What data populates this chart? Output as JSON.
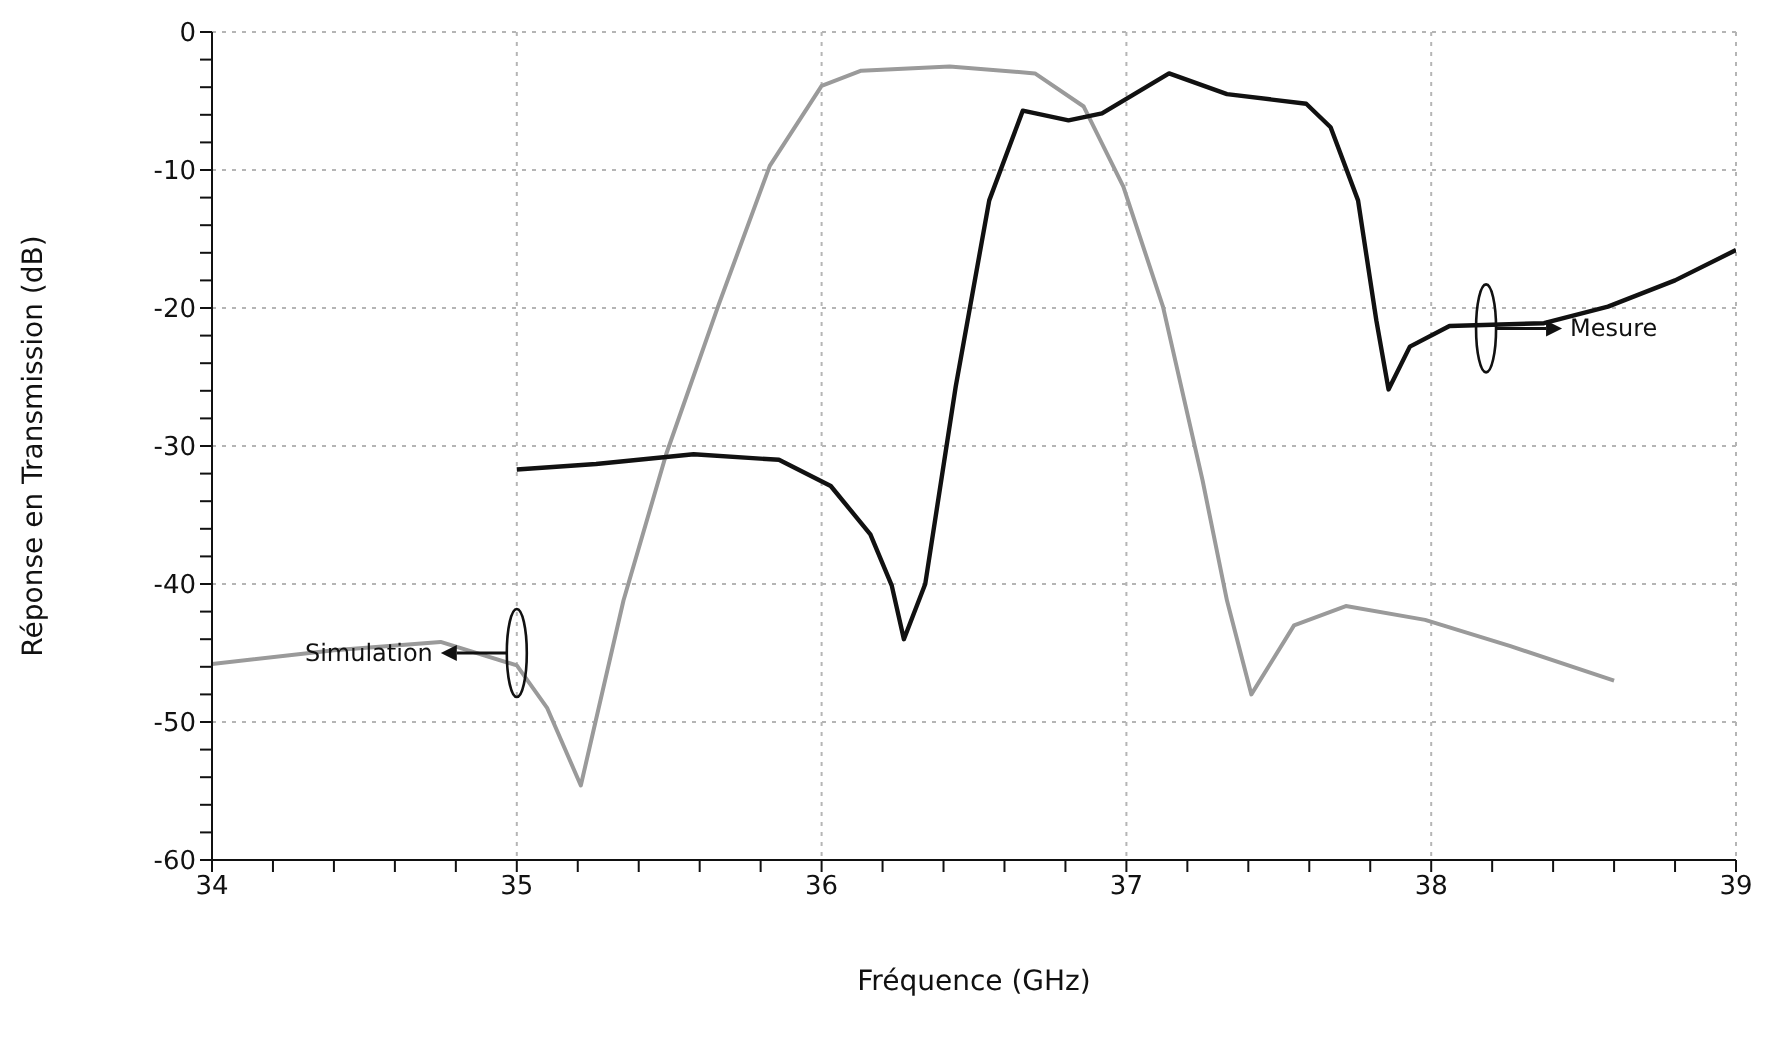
{
  "chart_data": {
    "type": "line",
    "xlabel": "Fréquence (GHz)",
    "ylabel": "Réponse en Transmission (dB)",
    "xlim": [
      34,
      39
    ],
    "ylim": [
      -60,
      0
    ],
    "xticks": [
      34,
      {
        "value": 34.2,
        "label": null
      },
      {
        "value": 34.4,
        "label": null
      },
      {
        "value": 34.6,
        "label": null
      },
      {
        "value": 34.8,
        "label": null
      },
      35,
      {
        "value": 35.2,
        "label": null
      },
      {
        "value": 35.4,
        "label": null
      },
      {
        "value": 35.6,
        "label": null
      },
      {
        "value": 35.8,
        "label": null
      },
      36,
      {
        "value": 36.2,
        "label": null
      },
      {
        "value": 36.4,
        "label": null
      },
      {
        "value": 36.6,
        "label": null
      },
      {
        "value": 36.8,
        "label": null
      },
      37,
      {
        "value": 37.2,
        "label": null
      },
      {
        "value": 37.4,
        "label": null
      },
      {
        "value": 37.6,
        "label": null
      },
      {
        "value": 37.8,
        "label": null
      },
      38,
      {
        "value": 38.2,
        "label": null
      },
      {
        "value": 38.4,
        "label": null
      },
      {
        "value": 38.6,
        "label": null
      },
      {
        "value": 38.8,
        "label": null
      },
      39
    ],
    "yticks": [
      -60,
      {
        "value": -58,
        "label": null
      },
      {
        "value": -56,
        "label": null
      },
      {
        "value": -54,
        "label": null
      },
      {
        "value": -52,
        "label": null
      },
      -50,
      {
        "value": -48,
        "label": null
      },
      {
        "value": -46,
        "label": null
      },
      {
        "value": -44,
        "label": null
      },
      {
        "value": -42,
        "label": null
      },
      -40,
      {
        "value": -38,
        "label": null
      },
      {
        "value": -36,
        "label": null
      },
      {
        "value": -34,
        "label": null
      },
      {
        "value": -32,
        "label": null
      },
      -30,
      {
        "value": -28,
        "label": null
      },
      {
        "value": -26,
        "label": null
      },
      {
        "value": -24,
        "label": null
      },
      {
        "value": -22,
        "label": null
      },
      -20,
      {
        "value": -18,
        "label": null
      },
      {
        "value": -16,
        "label": null
      },
      {
        "value": -14,
        "label": null
      },
      {
        "value": -12,
        "label": null
      },
      -10,
      {
        "value": -8,
        "label": null
      },
      {
        "value": -6,
        "label": null
      },
      {
        "value": -4,
        "label": null
      },
      {
        "value": -2,
        "label": null
      },
      0
    ],
    "grid": true,
    "marker": "none",
    "line_style": "solid",
    "series": [
      {
        "color": "#9a9a9a",
        "x": [
          34,
          34.4,
          34.75,
          35,
          35.1,
          35.21,
          35.35,
          35.49,
          35.66,
          35.83,
          36,
          36.13,
          36.42,
          36.7,
          36.86,
          36.99,
          37.12,
          37.25,
          37.33,
          37.41,
          37.55,
          37.72,
          37.98,
          38.26,
          38.6
        ],
        "values": [
          -45.8,
          -44.8,
          -44.2,
          -45.9,
          -49,
          -54.6,
          -41.2,
          -30.6,
          -19.9,
          -9.7,
          -3.9,
          -2.8,
          -2.5,
          -3,
          -5.4,
          -11.2,
          -19.9,
          -32.5,
          -41.2,
          -48,
          -43,
          -41.6,
          -42.6,
          -44.5,
          -47
        ]
      },
      {
        "color": "#111111",
        "x": [
          35,
          35.26,
          35.58,
          35.86,
          36.03,
          36.16,
          36.23,
          36.27,
          36.34,
          36.44,
          36.55,
          36.66,
          36.81,
          36.92,
          37.14,
          37.33,
          37.59,
          37.67,
          37.76,
          37.82,
          37.86,
          37.93,
          38.06,
          38.37,
          38.58,
          38.8,
          39
        ],
        "values": [
          -31.7,
          -31.3,
          -30.6,
          -31,
          -32.9,
          -36.4,
          -40.1,
          -44,
          -40,
          -25.7,
          -12.2,
          -5.7,
          -6.4,
          -5.9,
          -3,
          -4.5,
          -5.2,
          -6.9,
          -12.2,
          -20.9,
          -25.9,
          -22.8,
          -21.3,
          -21.1,
          -19.9,
          -18,
          -15.8
        ]
      }
    ],
    "annotations": [
      "Simulation",
      "Mesure"
    ]
  }
}
